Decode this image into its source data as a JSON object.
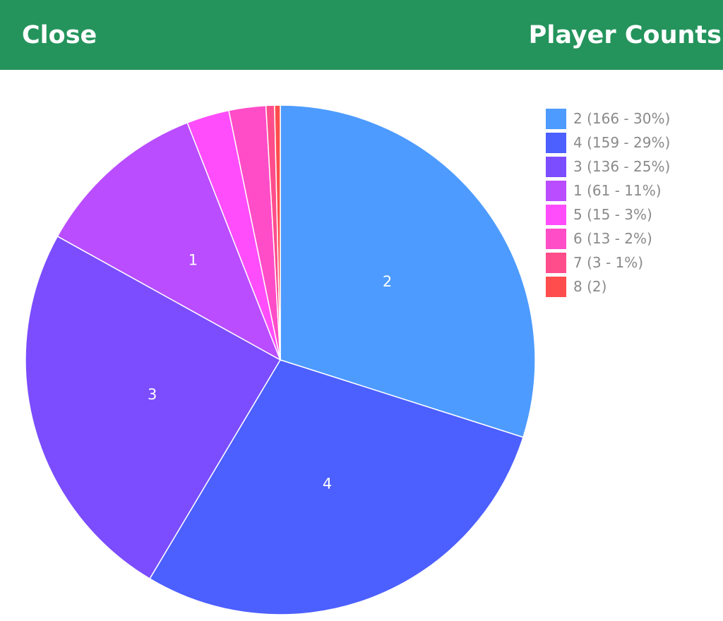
{
  "nav": {
    "close_label": "Close",
    "title": "Player Counts",
    "bar_color": "#24945c"
  },
  "chart_data": {
    "type": "pie",
    "title": "",
    "start_angle_deg": 0,
    "direction": "clockwise",
    "legend_position": "top-right",
    "slices": [
      {
        "category": "2",
        "value": 166,
        "slice_label": "2",
        "legend": "2 (166 - 30%)",
        "color": "#4d9bff"
      },
      {
        "category": "4",
        "value": 159,
        "slice_label": "4",
        "legend": "4 (159 - 29%)",
        "color": "#4c5fff"
      },
      {
        "category": "3",
        "value": 136,
        "slice_label": "3",
        "legend": "3 (136 - 25%)",
        "color": "#7b4dff"
      },
      {
        "category": "1",
        "value": 61,
        "slice_label": "1",
        "legend": "1 (61 - 11%)",
        "color": "#b94dff"
      },
      {
        "category": "5",
        "value": 15,
        "slice_label": "",
        "legend": "5 (15 - 3%)",
        "color": "#ff4dfb"
      },
      {
        "category": "6",
        "value": 13,
        "slice_label": "",
        "legend": "6 (13 - 2%)",
        "color": "#ff4dc8"
      },
      {
        "category": "7",
        "value": 3,
        "slice_label": "",
        "legend": "7 (3 - 1%)",
        "color": "#ff4d8c"
      },
      {
        "category": "8",
        "value": 2,
        "slice_label": "",
        "legend": "8 (2)",
        "color": "#ff4d4d"
      }
    ]
  }
}
